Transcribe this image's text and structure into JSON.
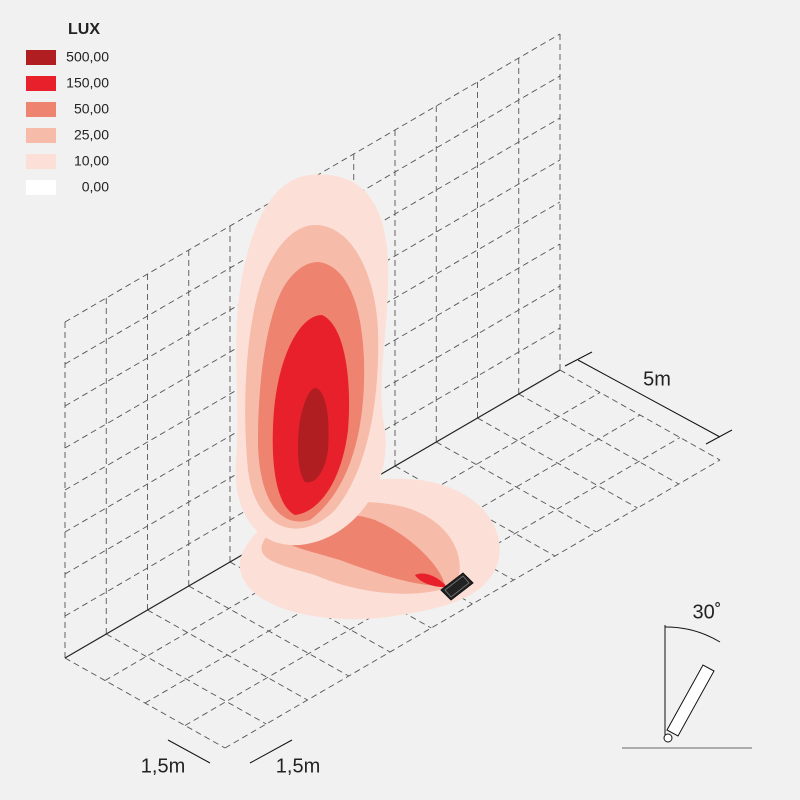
{
  "legend": {
    "title": "LUX",
    "items": [
      {
        "label": "500,00",
        "color": "#b01e22"
      },
      {
        "label": "150,00",
        "color": "#e8202c"
      },
      {
        "label": "50,00",
        "color": "#ee8370"
      },
      {
        "label": "25,00",
        "color": "#f6bba9"
      },
      {
        "label": "10,00",
        "color": "#fce0d7"
      },
      {
        "label": "0,00",
        "color": "#ffffff"
      }
    ]
  },
  "dimensions": {
    "depth": "5m",
    "width_1": "1,5m",
    "width_2": "1,5m",
    "tilt": "30˚"
  }
}
